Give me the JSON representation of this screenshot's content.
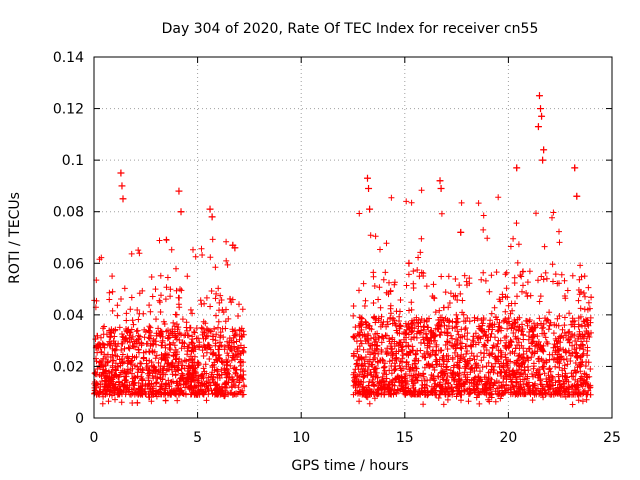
{
  "chart_data": {
    "type": "scatter",
    "title": "Day 304 of 2020, Rate Of TEC Index for receiver cn55",
    "xlabel": "GPS time / hours",
    "ylabel": "ROTI / TECUs",
    "xlim": [
      0,
      25
    ],
    "ylim": [
      0,
      0.14
    ],
    "xticks": [
      0,
      5,
      10,
      15,
      20,
      25
    ],
    "yticks": [
      0,
      0.02,
      0.04,
      0.06,
      0.08,
      0.1,
      0.12,
      0.14
    ],
    "xtick_labels": [
      "0",
      "5",
      "10",
      "15",
      "20",
      "25"
    ],
    "ytick_labels": [
      "0",
      "0.02",
      "0.04",
      "0.06",
      "0.08",
      "0.1",
      "0.12",
      "0.14"
    ],
    "grid": true,
    "marker": "+",
    "color": "#ff0000",
    "series": [
      {
        "name": "ROTI",
        "segments": [
          {
            "x_start": 0.0,
            "x_end": 7.25,
            "typical": [
              0.005,
              0.04
            ],
            "max": 0.095
          },
          {
            "x_start": 12.5,
            "x_end": 24.0,
            "typical": [
              0.005,
              0.045
            ],
            "max": 0.125
          }
        ],
        "highlights": [
          {
            "x": 1.3,
            "y": 0.095
          },
          {
            "x": 1.35,
            "y": 0.09
          },
          {
            "x": 1.4,
            "y": 0.085
          },
          {
            "x": 4.1,
            "y": 0.088
          },
          {
            "x": 4.2,
            "y": 0.08
          },
          {
            "x": 5.6,
            "y": 0.081
          },
          {
            "x": 5.7,
            "y": 0.078
          },
          {
            "x": 6.7,
            "y": 0.067
          },
          {
            "x": 6.8,
            "y": 0.066
          },
          {
            "x": 13.2,
            "y": 0.093
          },
          {
            "x": 13.25,
            "y": 0.089
          },
          {
            "x": 13.3,
            "y": 0.081
          },
          {
            "x": 15.2,
            "y": 0.06
          },
          {
            "x": 16.7,
            "y": 0.092
          },
          {
            "x": 16.75,
            "y": 0.089
          },
          {
            "x": 17.7,
            "y": 0.072
          },
          {
            "x": 20.4,
            "y": 0.097
          },
          {
            "x": 21.5,
            "y": 0.125
          },
          {
            "x": 21.55,
            "y": 0.12
          },
          {
            "x": 21.6,
            "y": 0.117
          },
          {
            "x": 21.45,
            "y": 0.113
          },
          {
            "x": 21.7,
            "y": 0.104
          },
          {
            "x": 21.65,
            "y": 0.1
          },
          {
            "x": 23.2,
            "y": 0.097
          },
          {
            "x": 23.3,
            "y": 0.086
          }
        ]
      }
    ]
  }
}
